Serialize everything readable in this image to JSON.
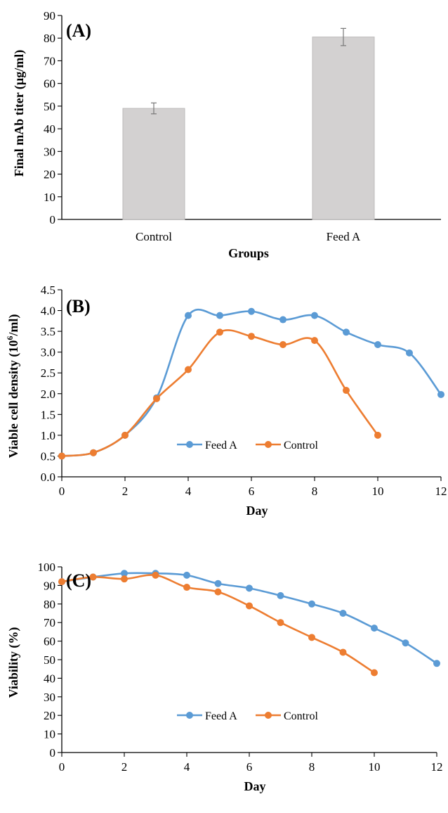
{
  "chart_data": [
    {
      "panel": "(A)",
      "type": "bar",
      "xlabel": "Groups",
      "ylabel": "Final mAb titer (µg/ml)",
      "ylim": [
        0,
        90
      ],
      "yticks": [
        0,
        10,
        20,
        30,
        40,
        50,
        60,
        70,
        80,
        90
      ],
      "categories": [
        "Control",
        "Feed A"
      ],
      "values": [
        49,
        80.5
      ],
      "errors": [
        2.4,
        3.8
      ],
      "bar_color": "#d3d1d1",
      "grid": false
    },
    {
      "panel": "(B)",
      "type": "line",
      "xlabel": "Day",
      "ylabel_main": "Viable cell density (10",
      "ylabel_sup": "6",
      "ylabel_end": "/ml)",
      "xlim": [
        0,
        12
      ],
      "xticks": [
        0,
        2,
        4,
        6,
        8,
        10,
        12
      ],
      "ylim": [
        0,
        4.5
      ],
      "yticks": [
        "0.0",
        "0.5",
        "1.0",
        "1.5",
        "2.0",
        "2.5",
        "3.0",
        "3.5",
        "4.0",
        "4.5"
      ],
      "legend_position": "lower-center",
      "grid": false,
      "series": [
        {
          "name": "Feed A",
          "color": "#5b9bd5",
          "x": [
            0,
            1,
            2,
            3,
            4,
            5,
            6,
            7,
            8,
            9,
            10,
            11,
            12
          ],
          "y": [
            0.5,
            0.58,
            1.0,
            1.9,
            3.88,
            3.88,
            3.98,
            3.78,
            3.88,
            3.48,
            3.18,
            2.98,
            1.98
          ]
        },
        {
          "name": "Control",
          "color": "#ed7d31",
          "x": [
            0,
            1,
            2,
            3,
            4,
            5,
            6,
            7,
            8,
            9,
            10
          ],
          "y": [
            0.5,
            0.58,
            1.0,
            1.88,
            2.58,
            3.48,
            3.38,
            3.18,
            3.28,
            2.08,
            1.0
          ]
        }
      ]
    },
    {
      "panel": "(C)",
      "type": "line",
      "xlabel": "Day",
      "ylabel": "Viability (%)",
      "xlim": [
        0,
        12
      ],
      "xticks": [
        0,
        2,
        4,
        6,
        8,
        10,
        12
      ],
      "ylim": [
        0,
        100
      ],
      "yticks": [
        0,
        10,
        20,
        30,
        40,
        50,
        60,
        70,
        80,
        90,
        100
      ],
      "legend_position": "lower-center",
      "grid": false,
      "series": [
        {
          "name": "Feed A",
          "color": "#5b9bd5",
          "x": [
            0,
            1,
            2,
            3,
            4,
            5,
            6,
            7,
            8,
            9,
            10,
            11,
            12
          ],
          "y": [
            92,
            94.5,
            96.5,
            96.5,
            95.5,
            91,
            88.5,
            84.5,
            80,
            75,
            67,
            59,
            48
          ]
        },
        {
          "name": "Control",
          "color": "#ed7d31",
          "x": [
            0,
            1,
            2,
            3,
            4,
            5,
            6,
            7,
            8,
            9,
            10
          ],
          "y": [
            92,
            94.5,
            93.5,
            95.5,
            89,
            86.5,
            79,
            70,
            62,
            54,
            43
          ]
        }
      ]
    }
  ]
}
